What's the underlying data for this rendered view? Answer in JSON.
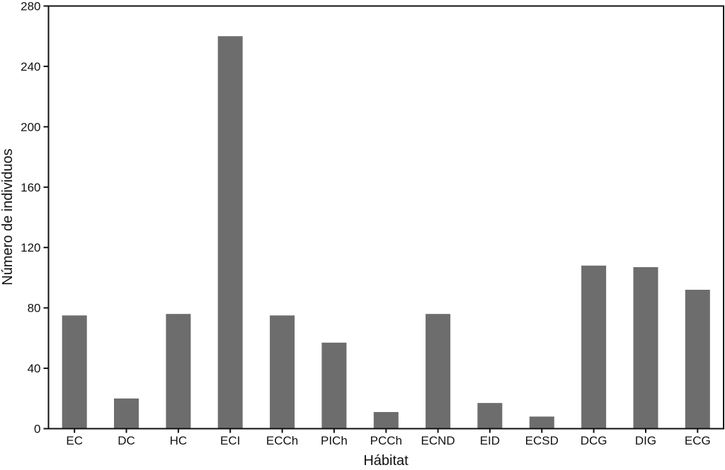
{
  "figure": {
    "background": "#ffffff"
  },
  "chart_data": {
    "type": "bar",
    "title": "",
    "xlabel": "Hábitat",
    "ylabel": "Número de individuos",
    "categories": [
      "EC",
      "DC",
      "HC",
      "ECI",
      "ECCh",
      "PICh",
      "PCCh",
      "ECND",
      "EID",
      "ECSD",
      "DCG",
      "DIG",
      "ECG"
    ],
    "values": [
      75,
      20,
      76,
      260,
      75,
      57,
      11,
      76,
      17,
      8,
      108,
      107,
      92
    ],
    "ylim": [
      0,
      280
    ],
    "yticks": [
      0,
      40,
      80,
      120,
      160,
      200,
      240,
      280
    ],
    "grid": false,
    "legend": "none",
    "bar_color": "#6d6d6d",
    "axis_color": "#111111",
    "frame": "full-box"
  }
}
